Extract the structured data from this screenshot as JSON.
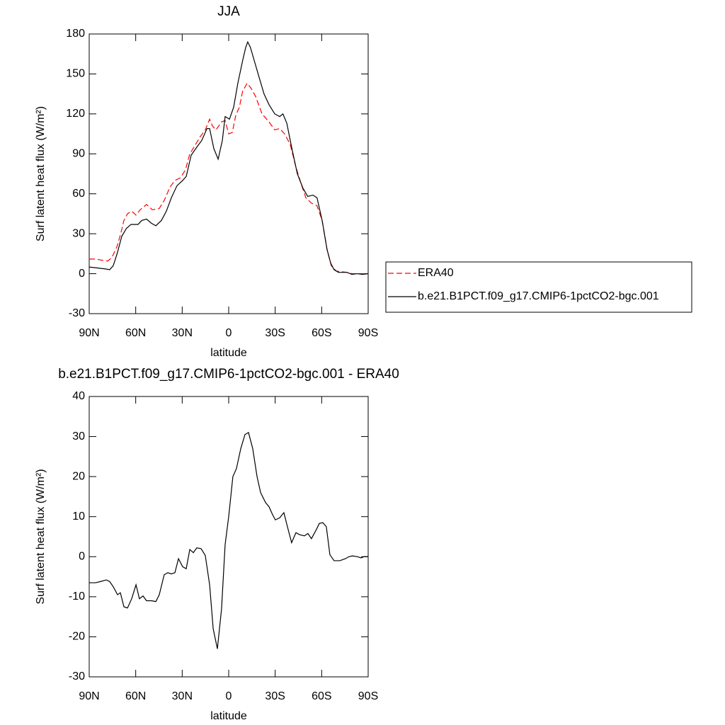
{
  "chart_data": [
    {
      "type": "line",
      "title": "JJA",
      "xlabel": "latitude",
      "ylabel": "Surf latent heat flux (W/m²)",
      "xlim": [
        90,
        -90
      ],
      "xticks": [
        {
          "value": 90,
          "label": "90N"
        },
        {
          "value": 60,
          "label": "60N"
        },
        {
          "value": 30,
          "label": "30N"
        },
        0,
        {
          "value": -30,
          "label": "30S"
        },
        {
          "value": -60,
          "label": "60S"
        },
        {
          "value": -90,
          "label": "90S"
        }
      ],
      "ylim": [
        -30,
        180
      ],
      "yticks": [
        -30,
        0,
        30,
        60,
        90,
        120,
        150,
        180
      ],
      "legend": "right",
      "series": [
        {
          "name": "ERA40",
          "color": "#ff0000",
          "line_style": "dashed",
          "x": [
            90,
            85.9,
            81.3,
            78.1,
            75.4,
            72.2,
            69.9,
            67.6,
            65.3,
            62.6,
            59.8,
            57.1,
            53,
            49.3,
            44.8,
            41.6,
            37.9,
            34.7,
            31.1,
            27.9,
            25.1,
            21.9,
            18.3,
            15.1,
            12.3,
            10.5,
            8.2,
            4.6,
            2.3,
            0,
            -2.3,
            -4.6,
            -6.9,
            -9,
            -11.9,
            -14.6,
            -17.4,
            -21.5,
            -26,
            -29.7,
            -32.9,
            -36.1,
            -39.7,
            -43.4,
            -46.6,
            -49.8,
            -53.4,
            -57,
            -60.3,
            -63.5,
            -66.2,
            -69.4,
            -76.3,
            -79.5,
            -83,
            -90
          ],
          "values": [
            11,
            11,
            10,
            9.5,
            12,
            20,
            29,
            40,
            45,
            47,
            44,
            48,
            52,
            48,
            49,
            55,
            65,
            70,
            72,
            78,
            90,
            96,
            103,
            108,
            116,
            111,
            108,
            114,
            115,
            105,
            106,
            119,
            125,
            137,
            143,
            139,
            133,
            120,
            114,
            108,
            109,
            105,
            97,
            80,
            68,
            57,
            53,
            51,
            40,
            18,
            6,
            2,
            1,
            0,
            0,
            0
          ]
        },
        {
          "name": "b.e21.B1PCT.f09_g17.CMIP6-1pctCO2-bgc.001",
          "color": "#000000",
          "line_style": "solid",
          "x": [
            90,
            79,
            76.8,
            74.5,
            72,
            69,
            66,
            63,
            58.5,
            56,
            53,
            50,
            47,
            43.4,
            40.2,
            37,
            33.4,
            29.7,
            27.4,
            24.2,
            20.6,
            17.4,
            14,
            12.3,
            9.6,
            6.8,
            4.1,
            2.3,
            -0.5,
            -3.2,
            -5.9,
            -9,
            -11,
            -12.3,
            -14,
            -17,
            -19,
            -22.8,
            -26,
            -29.7,
            -32.9,
            -35,
            -37.5,
            -40.6,
            -44.3,
            -48,
            -51,
            -54.4,
            -57,
            -60.3,
            -63.5,
            -65.8,
            -68,
            -70.8,
            -76.3,
            -79.5,
            -83,
            -86.3,
            -90
          ],
          "values": [
            5,
            3.5,
            3,
            6,
            15,
            28,
            34,
            37,
            37,
            40,
            41,
            38,
            36,
            40,
            47,
            57,
            66,
            70,
            73,
            89,
            95,
            100,
            109,
            109,
            94,
            86,
            100,
            118,
            116,
            125,
            143,
            160,
            170,
            174,
            170,
            158,
            150,
            135,
            127,
            120,
            118,
            120,
            113,
            95,
            75,
            64,
            58,
            59,
            57,
            40,
            18,
            8,
            3,
            1,
            1,
            -0.5,
            0,
            -0.5,
            0
          ]
        }
      ]
    },
    {
      "type": "line",
      "title": "b.e21.B1PCT.f09_g17.CMIP6-1pctCO2-bgc.001 - ERA40",
      "xlabel": "latitude",
      "ylabel": "Surf latent heat flux (W/m²)",
      "xlim": [
        90,
        -90
      ],
      "xticks": [
        {
          "value": 90,
          "label": "90N"
        },
        {
          "value": 60,
          "label": "60N"
        },
        {
          "value": 30,
          "label": "30N"
        },
        0,
        {
          "value": -30,
          "label": "30S"
        },
        {
          "value": -60,
          "label": "60S"
        },
        {
          "value": -90,
          "label": "90S"
        }
      ],
      "ylim": [
        -30,
        40
      ],
      "yticks": [
        -30,
        -20,
        -10,
        0,
        10,
        20,
        30,
        40
      ],
      "series": [
        {
          "color": "#000000",
          "line_style": "solid",
          "x": [
            90,
            85.9,
            82.7,
            79,
            76.8,
            74.5,
            71.7,
            69.9,
            67.6,
            65.3,
            62.6,
            59.8,
            57.6,
            55.3,
            53,
            49.8,
            47,
            44.8,
            41.6,
            39.3,
            37,
            34.7,
            32.4,
            29.7,
            27.4,
            25.1,
            22.8,
            20.6,
            17.8,
            15.1,
            12.3,
            10,
            7.3,
            4.6,
            2.3,
            0,
            -2.7,
            -5,
            -7.8,
            -10.5,
            -12.8,
            -15.5,
            -18.3,
            -20.6,
            -23.8,
            -26,
            -28.3,
            -30.1,
            -32.9,
            -35.6,
            -37.9,
            -40.6,
            -43.4,
            -45.7,
            -48.9,
            -51.1,
            -53.4,
            -56.6,
            -58.5,
            -60.7,
            -63,
            -65.3,
            -68,
            -71.7,
            -75.3,
            -77.6,
            -79.9,
            -83.1,
            -85.4,
            -87.2,
            -90
          ],
          "values": [
            -6.5,
            -6.5,
            -6.2,
            -5.8,
            -6.2,
            -7.5,
            -9.5,
            -9,
            -12.5,
            -12.8,
            -10.5,
            -7,
            -10.5,
            -9.8,
            -11,
            -11,
            -11.2,
            -9.5,
            -4.5,
            -4,
            -4.3,
            -4,
            -0.5,
            -2.5,
            -3,
            1.8,
            1,
            2.2,
            2,
            0.3,
            -7,
            -18,
            -23,
            -13,
            3,
            10,
            20,
            22,
            27,
            30.5,
            31,
            27,
            20,
            16,
            13.5,
            12.5,
            10.5,
            9.2,
            9.7,
            11,
            7.5,
            3.5,
            6,
            5.5,
            5.2,
            5.8,
            4.5,
            6.8,
            8.3,
            8.5,
            7.5,
            0.5,
            -1,
            -1,
            -0.5,
            0,
            0.2,
            0,
            -0.3,
            0,
            0
          ]
        }
      ]
    }
  ]
}
